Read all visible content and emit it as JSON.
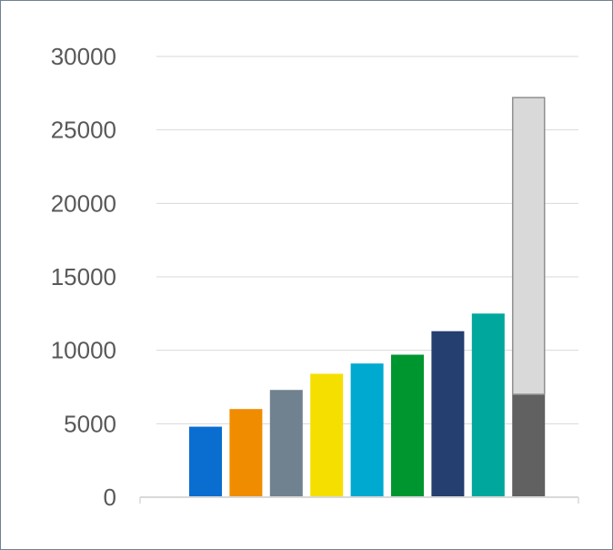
{
  "chart_data": {
    "type": "bar",
    "title": "",
    "xlabel": "",
    "ylabel": "",
    "ylim": [
      0,
      30000
    ],
    "yticks": [
      "0",
      "5000",
      "10000",
      "15000",
      "20000",
      "25000",
      "30000"
    ],
    "grid": true,
    "legend": "none",
    "categories": [
      "",
      "",
      "",
      "",
      "",
      "",
      "",
      "",
      ""
    ],
    "values": [
      4800,
      6000,
      7300,
      8400,
      9100,
      9700,
      11300,
      12500,
      7000
    ],
    "colors": [
      "#0a6ed1",
      "#f08c00",
      "#70828f",
      "#f5df00",
      "#00a9d0",
      "#00962f",
      "#243f70",
      "#00a79c",
      "#616161"
    ],
    "stacked_top": {
      "category_index": 8,
      "base": 7000,
      "top": 27200,
      "color": "#d9d9d9",
      "outline": "#8f8f8f"
    }
  }
}
